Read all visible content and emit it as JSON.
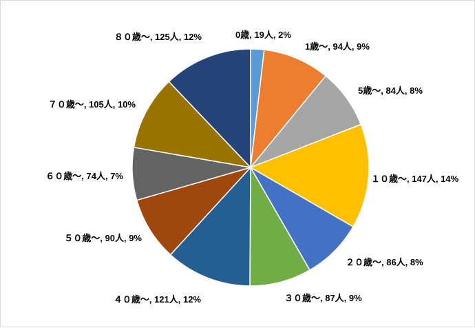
{
  "chart_data": {
    "type": "pie",
    "title": "",
    "slices": [
      {
        "category": "0歳",
        "value": 19,
        "percent": "2%",
        "label": "0歳, 19人, 2%",
        "color": "#5B9BD5"
      },
      {
        "category": "1歳～",
        "value": 94,
        "percent": "9%",
        "label": "1歳～, 94人, 9%",
        "color": "#ED7D31"
      },
      {
        "category": "5歳～",
        "value": 84,
        "percent": "8%",
        "label": "5歳～, 84人, 8%",
        "color": "#A5A5A5"
      },
      {
        "category": "１０歳～",
        "value": 147,
        "percent": "14%",
        "label": "１０歳～, 147人, 14%",
        "color": "#FFC000"
      },
      {
        "category": "２０歳～",
        "value": 86,
        "percent": "8%",
        "label": "２０歳～, 86人, 8%",
        "color": "#4472C4"
      },
      {
        "category": "３０歳～",
        "value": 87,
        "percent": "9%",
        "label": "３０歳～, 87人, 9%",
        "color": "#70AD47"
      },
      {
        "category": "４０歳～",
        "value": 121,
        "percent": "12%",
        "label": "４０歳～, 121人, 12%",
        "color": "#255E91"
      },
      {
        "category": "５０歳～",
        "value": 90,
        "percent": "9%",
        "label": "５０歳～, 90人, 9%",
        "color": "#9E480E"
      },
      {
        "category": "６０歳～",
        "value": 74,
        "percent": "7%",
        "label": "６０歳～, 74人, 7%",
        "color": "#636363"
      },
      {
        "category": "７０歳～",
        "value": 105,
        "percent": "10%",
        "label": "７０歳～, 105人, 10%",
        "color": "#997300"
      },
      {
        "category": "８０歳～",
        "value": 125,
        "percent": "12%",
        "label": "８０歳～, 125人, 12%",
        "color": "#264478"
      }
    ],
    "start_angle": "12 o'clock, clockwise",
    "legend": "none"
  }
}
